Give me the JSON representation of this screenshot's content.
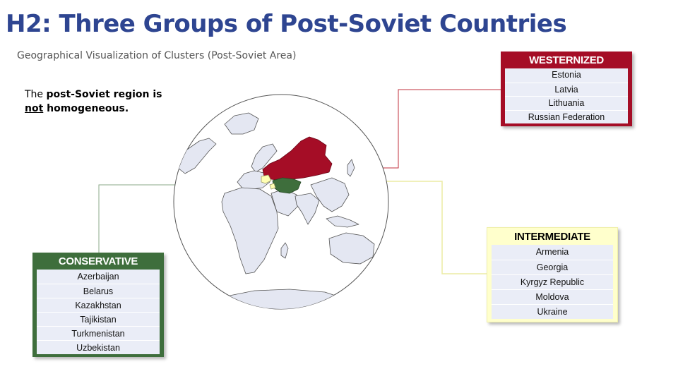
{
  "title": "H2: Three Groups of Post-Soviet Countries",
  "subtitle": "Geographical Visualization of Clusters (Post-Soviet Area)",
  "note": {
    "part1": "The ",
    "bold1": "post-Soviet region is",
    "underline": "not",
    "bold2": " homogeneous."
  },
  "colors": {
    "title": "#2e4591",
    "westernized": "#a50d26",
    "intermediate": "#ffffcc",
    "conservative": "#3e6e3c",
    "land": "#e4e7f2",
    "list_row": "#eaedf7"
  },
  "groups": {
    "westernized": {
      "label": "WESTERNIZED",
      "countries": [
        "Estonia",
        "Latvia",
        "Lithuania",
        "Russian Federation"
      ]
    },
    "intermediate": {
      "label": "INTERMEDIATE",
      "countries": [
        "Armenia",
        "Georgia",
        "Kyrgyz Republic",
        "Moldova",
        "Ukraine"
      ]
    },
    "conservative": {
      "label": "CONSERVATIVE",
      "countries": [
        "Azerbaijan",
        "Belarus",
        "Kazakhstan",
        "Tajikistan",
        "Turkmenistan",
        "Uzbekistan"
      ]
    }
  }
}
